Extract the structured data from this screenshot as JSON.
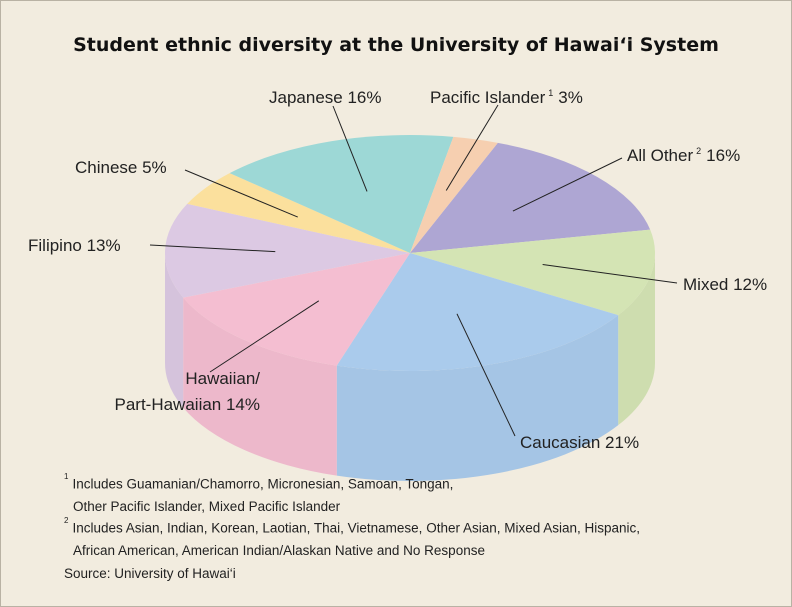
{
  "chart_data": {
    "type": "pie",
    "title": "Student ethnic diversity at the University of Hawai‘i System",
    "slices": [
      {
        "name": "All Other",
        "footnote_mark": "2",
        "value": 16,
        "value_label": "16%",
        "color": "#aea6d3"
      },
      {
        "name": "Mixed",
        "value": 12,
        "value_label": "12%",
        "color": "#d4e4b4"
      },
      {
        "name": "Caucasian",
        "value": 21,
        "value_label": "21%",
        "color": "#aacbec"
      },
      {
        "name": "Hawaiian/ Part-Hawaiian",
        "name_lines": [
          "Hawaiian/",
          "Part-Hawaiian 14%"
        ],
        "value": 14,
        "value_label": "14%",
        "color": "#f4bed1"
      },
      {
        "name": "Filipino",
        "value": 13,
        "value_label": "13%",
        "color": "#dcc9e3"
      },
      {
        "name": "Chinese",
        "value": 5,
        "value_label": "5%",
        "color": "#fbe09d"
      },
      {
        "name": "Japanese",
        "value": 16,
        "value_label": "16%",
        "color": "#9dd8d6"
      },
      {
        "name": "Pacific Islander",
        "footnote_mark": "1",
        "value": 3,
        "value_label": "3%",
        "color": "#f6cfb0"
      }
    ]
  },
  "labels": {
    "all_other": "All Other",
    "all_other_mark": "2",
    "all_other_value": "16%",
    "mixed": "Mixed 12%",
    "caucasian": "Caucasian 21%",
    "hawaiian_line1": "Hawaiian/",
    "hawaiian_line2": "Part-Hawaiian 14%",
    "filipino": "Filipino 13%",
    "chinese": "Chinese 5%",
    "japanese": "Japanese 16%",
    "pacific": "Pacific Islander",
    "pacific_mark": "1",
    "pacific_value": "3%"
  },
  "footnotes": {
    "fn1_mark": "1",
    "fn1_line1": "Includes Guamanian/Chamorro, Micronesian, Samoan, Tongan,",
    "fn1_line2": "Other Pacific Islander, Mixed Pacific Islander",
    "fn2_mark": "2",
    "fn2_line1": "Includes Asian, Indian, Korean, Laotian, Thai, Vietnamese, Other Asian, Mixed Asian, Hispanic,",
    "fn2_line2": "African American, American Indian/Alaskan Native and No Response"
  },
  "source": "Source: University of Hawai‘i"
}
